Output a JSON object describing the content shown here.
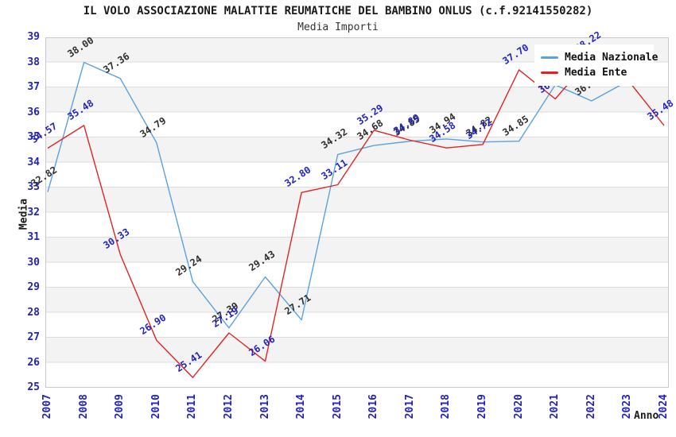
{
  "header": {
    "title": "IL VOLO ASSOCIAZIONE MALATTIE REUMATICHE DEL BAMBINO ONLUS (c.f.92141550282)",
    "subtitle": "Media Importi"
  },
  "chart_data": {
    "type": "line",
    "x": [
      2007,
      2008,
      2009,
      2010,
      2011,
      2012,
      2013,
      2014,
      2015,
      2016,
      2017,
      2018,
      2019,
      2020,
      2021,
      2022,
      2023,
      2024
    ],
    "xlabel": "Anno",
    "ylabel": "Media",
    "ylim": [
      25,
      39
    ],
    "yticks": [
      25,
      26,
      27,
      28,
      29,
      30,
      31,
      32,
      33,
      34,
      35,
      36,
      37,
      38,
      39
    ],
    "grid": "horizontal gridlines with alternating gray bands",
    "legend_position": "upper right",
    "series": [
      {
        "name": "Media Nazionale",
        "color": "#58a3e0",
        "label_color": "#2e2e2e",
        "values": [
          32.82,
          38.0,
          37.36,
          34.79,
          29.24,
          27.39,
          29.43,
          27.71,
          34.32,
          34.68,
          34.85,
          34.94,
          34.82,
          34.85,
          37.1,
          36.46,
          37.25,
          null
        ],
        "point_labels": [
          "32.82",
          "38.00",
          "37.36",
          "34.79",
          "29.24",
          "27.39",
          "29.43",
          "27.71",
          "34.32",
          "34.68",
          "34.85",
          "34.94",
          "34.82",
          "34.85",
          null,
          "36.46",
          null,
          null
        ]
      },
      {
        "name": "Media Ente",
        "color": "#e02424",
        "label_color": "#2323c0",
        "values": [
          34.57,
          35.48,
          30.33,
          26.9,
          25.41,
          27.19,
          26.06,
          32.8,
          33.11,
          35.29,
          34.89,
          34.58,
          34.72,
          37.7,
          36.54,
          38.22,
          37.3,
          35.48
        ],
        "point_labels": [
          "34.57",
          "35.48",
          "30.33",
          "26.90",
          "25.41",
          "27.19",
          "26.06",
          "32.80",
          "33.11",
          "35.29",
          "34.89",
          "34.58",
          "34.72",
          "37.70",
          "36.54",
          "38.22",
          null,
          "35.48"
        ]
      }
    ]
  },
  "colors": {
    "tick_text": "#2222bf",
    "band": "#f3f3f3",
    "gridline": "#dcdcdc",
    "plot_border": "#c9c9c9",
    "background": "#ffffff"
  }
}
